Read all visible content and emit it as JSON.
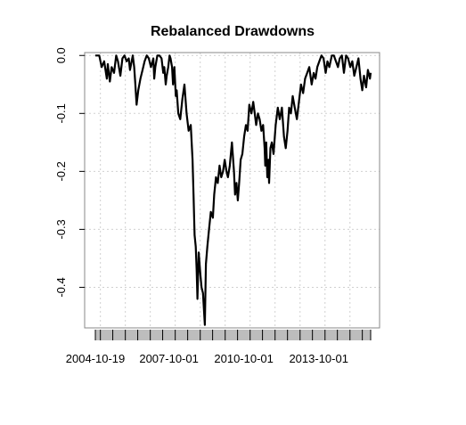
{
  "chart_data": {
    "type": "line",
    "title": "Rebalanced Drawdowns",
    "xlabel": "",
    "ylabel": "",
    "x_tick_labels": [
      "2004-10-19",
      "2007-10-01",
      "2010-10-01",
      "2013-10-01"
    ],
    "x_tick_dates": [
      "2004-10-19",
      "2007-10-01",
      "2010-10-01",
      "2013-10-01"
    ],
    "xlim": [
      "2004-10-19",
      "2015-10-31"
    ],
    "y_ticks": [
      0.0,
      -0.1,
      -0.2,
      -0.3,
      -0.4
    ],
    "y_tick_labels": [
      "0.0",
      "-0.1",
      "-0.2",
      "-0.3",
      "-0.4"
    ],
    "ylim": [
      -0.47,
      0.005
    ],
    "grid": true,
    "series": [
      {
        "color": "#000000",
        "x": [
          "2004-10-19",
          "2004-12-15",
          "2005-01-20",
          "2005-02-25",
          "2005-04-05",
          "2005-04-20",
          "2005-05-20",
          "2005-06-15",
          "2005-07-20",
          "2005-08-20",
          "2005-09-15",
          "2005-10-20",
          "2005-11-20",
          "2005-12-20",
          "2006-01-20",
          "2006-02-20",
          "2006-03-10",
          "2006-04-20",
          "2006-05-10",
          "2006-05-25",
          "2006-06-15",
          "2006-07-10",
          "2006-08-10",
          "2006-09-10",
          "2006-10-10",
          "2006-11-10",
          "2006-12-10",
          "2007-01-10",
          "2007-02-15",
          "2007-02-28",
          "2007-03-15",
          "2007-04-15",
          "2007-05-15",
          "2007-06-15",
          "2007-07-10",
          "2007-07-25",
          "2007-08-15",
          "2007-08-30",
          "2007-09-20",
          "2007-10-10",
          "2007-10-25",
          "2007-11-15",
          "2007-11-30",
          "2007-12-20",
          "2008-01-10",
          "2008-01-22",
          "2008-02-15",
          "2008-03-15",
          "2008-04-15",
          "2008-05-15",
          "2008-06-15",
          "2008-07-15",
          "2008-08-15",
          "2008-09-10",
          "2008-09-25",
          "2008-10-10",
          "2008-10-27",
          "2008-11-10",
          "2008-11-21",
          "2008-12-10",
          "2009-01-05",
          "2009-01-20",
          "2009-02-10",
          "2009-03-09",
          "2009-03-25",
          "2009-04-15",
          "2009-05-10",
          "2009-06-05",
          "2009-07-05",
          "2009-07-25",
          "2009-08-20",
          "2009-09-15",
          "2009-10-10",
          "2009-11-05",
          "2009-12-01",
          "2009-12-25",
          "2010-01-20",
          "2010-02-10",
          "2010-03-10",
          "2010-04-10",
          "2010-05-10",
          "2010-05-25",
          "2010-06-15",
          "2010-07-05",
          "2010-07-25",
          "2010-08-15",
          "2010-09-10",
          "2010-10-05",
          "2010-11-01",
          "2010-11-25",
          "2010-12-20",
          "2011-01-20",
          "2011-02-15",
          "2011-03-10",
          "2011-03-30",
          "2011-04-25",
          "2011-05-20",
          "2011-06-15",
          "2011-07-10",
          "2011-08-01",
          "2011-08-10",
          "2011-08-25",
          "2011-09-10",
          "2011-09-25",
          "2011-10-05",
          "2011-10-25",
          "2011-11-15",
          "2011-12-10",
          "2012-01-10",
          "2012-02-10",
          "2012-03-10",
          "2012-04-10",
          "2012-05-10",
          "2012-06-05",
          "2012-07-01",
          "2012-07-25",
          "2012-08-20",
          "2012-09-15",
          "2012-10-15",
          "2012-11-15",
          "2012-12-15",
          "2013-01-15",
          "2013-02-15",
          "2013-03-15",
          "2013-04-15",
          "2013-05-15",
          "2013-06-20",
          "2013-07-20",
          "2013-08-15",
          "2013-09-10",
          "2013-10-10",
          "2013-11-10",
          "2013-12-10",
          "2014-01-10",
          "2014-02-05",
          "2014-03-05",
          "2014-04-10",
          "2014-05-10",
          "2014-06-10",
          "2014-07-10",
          "2014-08-05",
          "2014-09-05",
          "2014-10-05",
          "2014-11-05",
          "2014-12-05",
          "2015-01-05",
          "2015-02-05",
          "2015-03-05",
          "2015-04-05",
          "2015-05-05",
          "2015-06-05",
          "2015-06-30",
          "2015-07-25",
          "2015-08-25",
          "2015-09-20",
          "2015-10-20",
          "2015-10-31"
        ],
        "values": [
          0.0,
          0.0,
          -0.02,
          -0.01,
          -0.04,
          -0.015,
          -0.045,
          -0.02,
          -0.03,
          0.0,
          -0.01,
          -0.035,
          -0.005,
          0.0,
          -0.01,
          -0.005,
          -0.025,
          0.0,
          -0.02,
          -0.045,
          -0.085,
          -0.06,
          -0.04,
          -0.025,
          -0.01,
          0.0,
          -0.005,
          -0.02,
          -0.005,
          -0.04,
          -0.02,
          0.0,
          0.0,
          -0.005,
          -0.03,
          -0.02,
          -0.05,
          -0.035,
          -0.02,
          0.0,
          -0.005,
          -0.02,
          -0.05,
          -0.02,
          -0.07,
          -0.06,
          -0.1,
          -0.11,
          -0.075,
          -0.05,
          -0.1,
          -0.13,
          -0.12,
          -0.18,
          -0.24,
          -0.31,
          -0.33,
          -0.37,
          -0.42,
          -0.34,
          -0.38,
          -0.4,
          -0.41,
          -0.465,
          -0.36,
          -0.33,
          -0.3,
          -0.27,
          -0.28,
          -0.24,
          -0.21,
          -0.22,
          -0.19,
          -0.21,
          -0.2,
          -0.18,
          -0.2,
          -0.21,
          -0.19,
          -0.15,
          -0.2,
          -0.24,
          -0.22,
          -0.25,
          -0.22,
          -0.18,
          -0.17,
          -0.14,
          -0.12,
          -0.13,
          -0.085,
          -0.1,
          -0.08,
          -0.1,
          -0.12,
          -0.1,
          -0.11,
          -0.13,
          -0.12,
          -0.16,
          -0.19,
          -0.15,
          -0.21,
          -0.18,
          -0.22,
          -0.16,
          -0.15,
          -0.17,
          -0.12,
          -0.09,
          -0.11,
          -0.09,
          -0.14,
          -0.16,
          -0.13,
          -0.09,
          -0.1,
          -0.07,
          -0.09,
          -0.11,
          -0.08,
          -0.05,
          -0.065,
          -0.04,
          -0.03,
          -0.02,
          -0.05,
          -0.03,
          -0.04,
          -0.02,
          -0.01,
          0.0,
          -0.005,
          -0.03,
          -0.01,
          -0.02,
          0.0,
          0.0,
          -0.01,
          -0.02,
          -0.005,
          0.0,
          -0.03,
          0.0,
          -0.005,
          -0.02,
          -0.01,
          -0.035,
          -0.02,
          -0.005,
          -0.04,
          -0.06,
          -0.035,
          -0.055,
          -0.025,
          -0.04,
          -0.03
        ]
      }
    ]
  }
}
